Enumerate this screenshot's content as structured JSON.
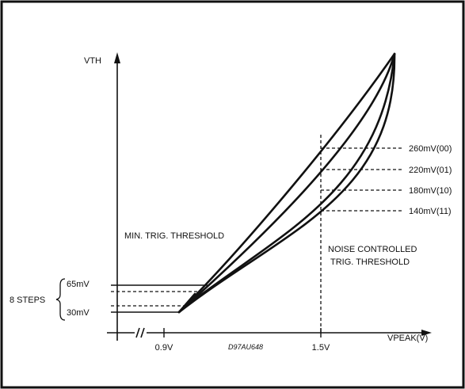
{
  "chart_data": {
    "type": "line",
    "ylabel": "VTH",
    "xlabel": "VPEAK(V)",
    "x_ticks": [
      "0.9V",
      "1.5V"
    ],
    "y_ticks": [
      "65mV",
      "30mV"
    ],
    "steps_label": "8 STEPS",
    "figure_code": "D97AU648",
    "annotations": {
      "min_threshold": "MIN. TRIG. THRESHOLD",
      "noise_line1": "NOISE CONTROLLED",
      "noise_line2": "TRIG. THRESHOLD"
    },
    "series": [
      {
        "name": "260mV(00)",
        "threshold_at_1_5V_mV": 260
      },
      {
        "name": "220mV(01)",
        "threshold_at_1_5V_mV": 220
      },
      {
        "name": "180mV(10)",
        "threshold_at_1_5V_mV": 180
      },
      {
        "name": "140mV(11)",
        "threshold_at_1_5V_mV": 140
      }
    ],
    "min_threshold_range_mV": [
      30,
      65
    ],
    "min_threshold_steps": 8,
    "grid": false
  }
}
